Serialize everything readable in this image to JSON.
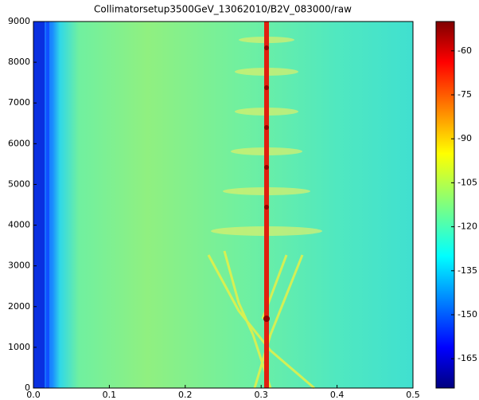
{
  "chart_data": {
    "type": "heatmap",
    "title": "Collimatorsetup3500GeV_13062010/B2V_083000/raw",
    "xlim": [
      0,
      0.5
    ],
    "xticks": [
      {
        "value": 0,
        "label": "0.0"
      },
      0.1,
      0.2,
      0.3,
      0.4,
      0.5
    ],
    "ylim": [
      0,
      9000
    ],
    "yticks": [
      0,
      1000,
      2000,
      3000,
      4000,
      5000,
      6000,
      7000,
      8000,
      9000
    ],
    "colorbar": {
      "clim": [
        -175,
        -50
      ],
      "ticks": [
        -60,
        -75,
        -90,
        -105,
        -120,
        -135,
        -150,
        -165
      ],
      "colormap": "jet"
    }
  }
}
